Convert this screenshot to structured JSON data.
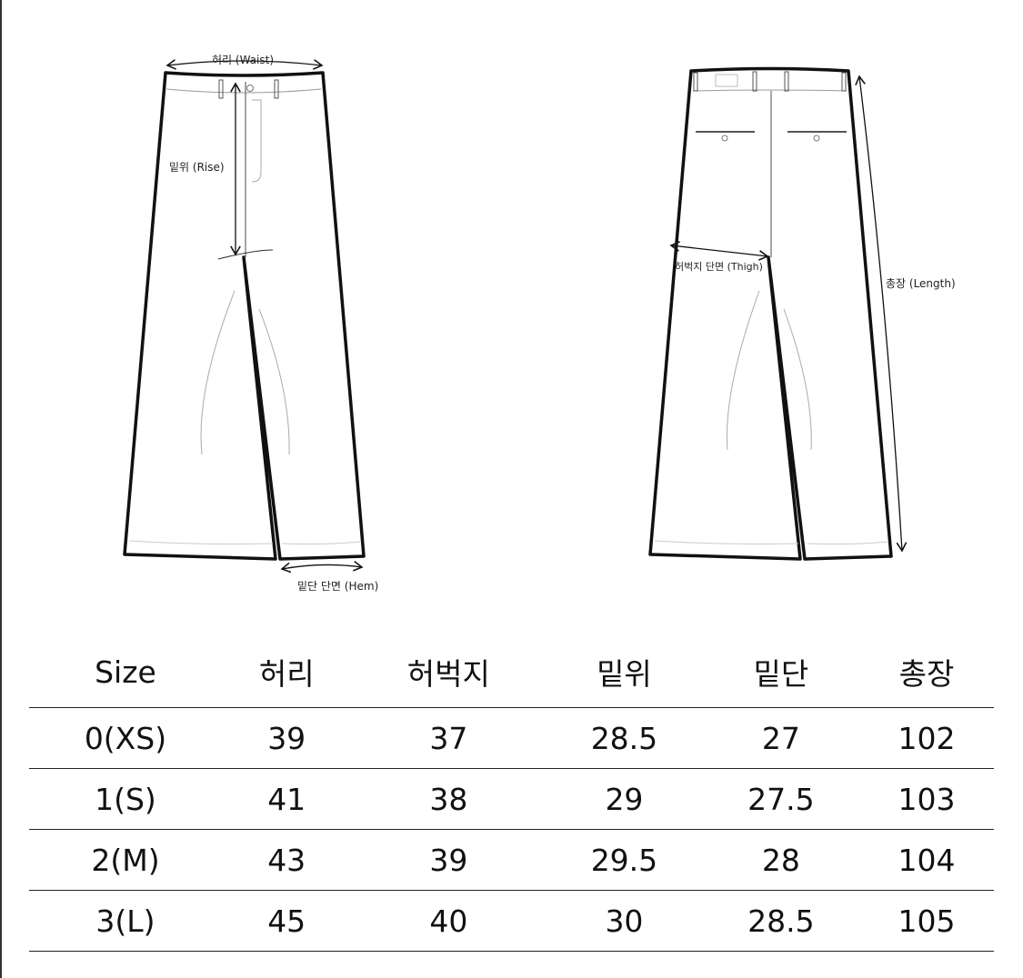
{
  "diagram": {
    "front": {
      "waist_label": "허리 (Waist)",
      "rise_label": "밑위 (Rise)",
      "hem_label": "밑단 단면 (Hem)"
    },
    "back": {
      "thigh_label": "허벅지 단면 (Thigh)",
      "length_label": "총장 (Length)"
    }
  },
  "size_table": {
    "headers": [
      "Size",
      "허리",
      "허벅지",
      "밑위",
      "밑단",
      "총장"
    ],
    "rows": [
      [
        "0(XS)",
        "39",
        "37",
        "28.5",
        "27",
        "102"
      ],
      [
        "1(S)",
        "41",
        "38",
        "29",
        "27.5",
        "103"
      ],
      [
        "2(M)",
        "43",
        "39",
        "29.5",
        "28",
        "104"
      ],
      [
        "3(L)",
        "45",
        "40",
        "30",
        "28.5",
        "105"
      ]
    ]
  }
}
